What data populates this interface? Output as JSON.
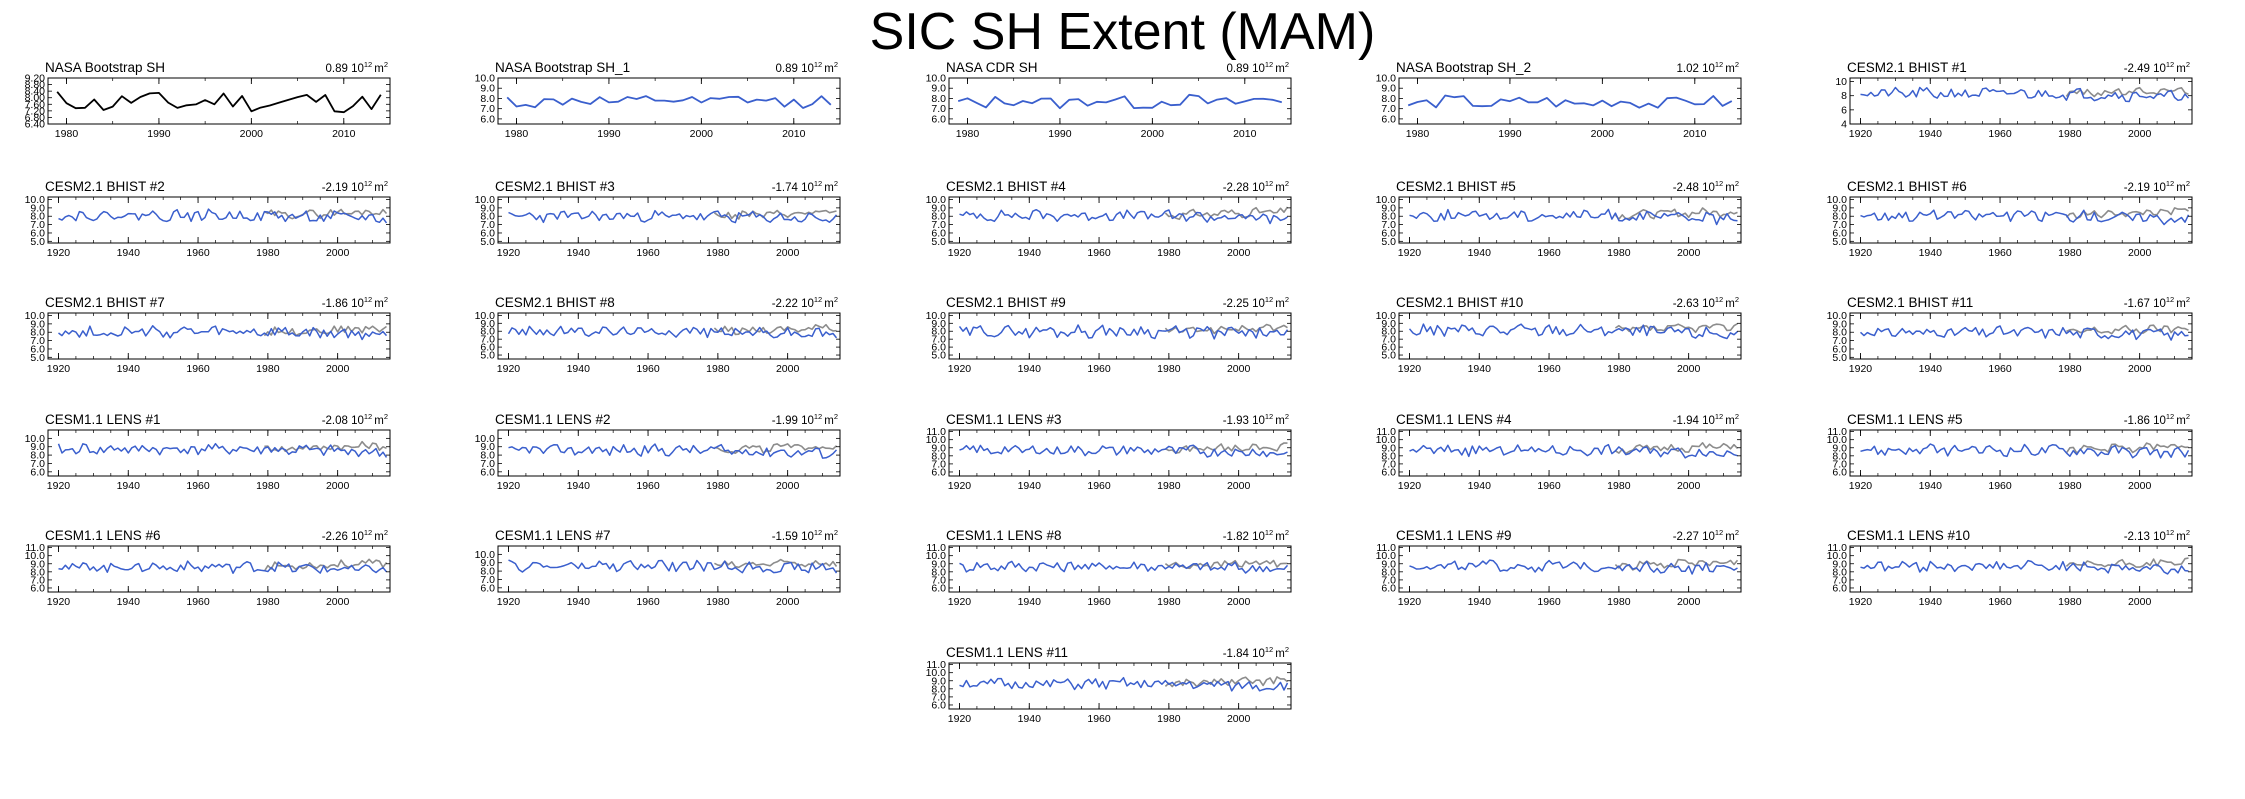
{
  "title": "SIC SH Extent (MAM)",
  "colors": {
    "obs_line": "#000000",
    "model_line": "#3a5fcd",
    "obs_overlay": "#8c8c8c"
  },
  "unit": {
    "base": "10",
    "exp": "12",
    "suffix": "m",
    "sup": "2"
  },
  "chart_data": [
    {
      "id": "nasa-bootstrap-sh",
      "type": "line",
      "title": "NASA Bootstrap SH",
      "trend": "0.89",
      "xlim": [
        1978,
        2015
      ],
      "ylim": [
        6.4,
        9.2
      ],
      "yticks": [
        "9.20",
        "8.80",
        "8.40",
        "8.00",
        "7.60",
        "7.20",
        "6.80",
        "6.40"
      ],
      "xticks": [
        "1980",
        "1990",
        "2000",
        "2010"
      ],
      "style": "obs",
      "series_start": 1979,
      "seed": 11,
      "mean": 7.75,
      "amp": 0.55
    },
    {
      "id": "nasa-bootstrap-sh-1",
      "type": "line",
      "title": "NASA Bootstrap SH_1",
      "trend": "0.89",
      "xlim": [
        1978,
        2015
      ],
      "ylim": [
        5.5,
        10.0
      ],
      "yticks": [
        "10.0",
        "9.0",
        "8.0",
        "7.0",
        "6.0"
      ],
      "xticks": [
        "1980",
        "1990",
        "2000",
        "2010"
      ],
      "style": "single",
      "series_start": 1979,
      "seed": 12,
      "mean": 7.7,
      "amp": 0.6
    },
    {
      "id": "nasa-cdr-sh",
      "type": "line",
      "title": "NASA CDR SH",
      "trend": "0.89",
      "xlim": [
        1978,
        2015
      ],
      "ylim": [
        5.5,
        10.0
      ],
      "yticks": [
        "10.0",
        "9.0",
        "8.0",
        "7.0",
        "6.0"
      ],
      "xticks": [
        "1980",
        "1990",
        "2000",
        "2010"
      ],
      "style": "single",
      "series_start": 1979,
      "seed": 13,
      "mean": 7.7,
      "amp": 0.6
    },
    {
      "id": "nasa-bootstrap-sh-2",
      "type": "line",
      "title": "NASA Bootstrap SH_2",
      "trend": "1.02",
      "xlim": [
        1978,
        2015
      ],
      "ylim": [
        5.5,
        10.0
      ],
      "yticks": [
        "10.0",
        "9.0",
        "8.0",
        "7.0",
        "6.0"
      ],
      "xticks": [
        "1980",
        "1990",
        "2000",
        "2010"
      ],
      "style": "single",
      "series_start": 1979,
      "seed": 14,
      "mean": 7.6,
      "amp": 0.6
    },
    {
      "id": "cesm2-bhist-1",
      "type": "line",
      "title": "CESM2.1 BHIST #1",
      "trend": "-2.49",
      "xlim": [
        1917,
        2015
      ],
      "ylim": [
        4,
        10.5
      ],
      "yticks": [
        "10",
        "8",
        "6",
        "4"
      ],
      "xticks": [
        "1920",
        "1940",
        "1960",
        "1980",
        "2000"
      ],
      "style": "model",
      "series_start": 1920,
      "seed": 21,
      "mean": 8.3,
      "amp": 0.7
    },
    {
      "id": "cesm2-bhist-2",
      "type": "line",
      "title": "CESM2.1 BHIST #2",
      "trend": "-2.19",
      "xlim": [
        1917,
        2015
      ],
      "ylim": [
        4.8,
        10.3
      ],
      "yticks": [
        "10.0",
        "9.0",
        "8.0",
        "7.0",
        "6.0",
        "5.0"
      ],
      "xticks": [
        "1920",
        "1940",
        "1960",
        "1980",
        "2000"
      ],
      "style": "model",
      "series_start": 1920,
      "seed": 22,
      "mean": 8.1,
      "amp": 0.6
    },
    {
      "id": "cesm2-bhist-3",
      "type": "line",
      "title": "CESM2.1 BHIST #3",
      "trend": "-1.74",
      "xlim": [
        1917,
        2015
      ],
      "ylim": [
        4.8,
        10.3
      ],
      "yticks": [
        "10.0",
        "9.0",
        "8.0",
        "7.0",
        "6.0",
        "5.0"
      ],
      "xticks": [
        "1920",
        "1940",
        "1960",
        "1980",
        "2000"
      ],
      "style": "model",
      "series_start": 1920,
      "seed": 23,
      "mean": 8.0,
      "amp": 0.6
    },
    {
      "id": "cesm2-bhist-4",
      "type": "line",
      "title": "CESM2.1 BHIST #4",
      "trend": "-2.28",
      "xlim": [
        1917,
        2015
      ],
      "ylim": [
        4.8,
        10.3
      ],
      "yticks": [
        "10.0",
        "9.0",
        "8.0",
        "7.0",
        "6.0",
        "5.0"
      ],
      "xticks": [
        "1920",
        "1940",
        "1960",
        "1980",
        "2000"
      ],
      "style": "model",
      "series_start": 1920,
      "seed": 24,
      "mean": 8.1,
      "amp": 0.6
    },
    {
      "id": "cesm2-bhist-5",
      "type": "line",
      "title": "CESM2.1 BHIST #5",
      "trend": "-2.48",
      "xlim": [
        1917,
        2015
      ],
      "ylim": [
        4.8,
        10.3
      ],
      "yticks": [
        "10.0",
        "9.0",
        "8.0",
        "7.0",
        "6.0",
        "5.0"
      ],
      "xticks": [
        "1920",
        "1940",
        "1960",
        "1980",
        "2000"
      ],
      "style": "model",
      "series_start": 1920,
      "seed": 25,
      "mean": 8.1,
      "amp": 0.6
    },
    {
      "id": "cesm2-bhist-6",
      "type": "line",
      "title": "CESM2.1 BHIST #6",
      "trend": "-2.19",
      "xlim": [
        1917,
        2015
      ],
      "ylim": [
        4.8,
        10.3
      ],
      "yticks": [
        "10.0",
        "9.0",
        "8.0",
        "7.0",
        "6.0",
        "5.0"
      ],
      "xticks": [
        "1920",
        "1940",
        "1960",
        "1980",
        "2000"
      ],
      "style": "model",
      "series_start": 1920,
      "seed": 26,
      "mean": 8.1,
      "amp": 0.6
    },
    {
      "id": "cesm2-bhist-7",
      "type": "line",
      "title": "CESM2.1 BHIST #7",
      "trend": "-1.86",
      "xlim": [
        1917,
        2015
      ],
      "ylim": [
        4.8,
        10.3
      ],
      "yticks": [
        "10.0",
        "9.0",
        "8.0",
        "7.0",
        "6.0",
        "5.0"
      ],
      "xticks": [
        "1920",
        "1940",
        "1960",
        "1980",
        "2000"
      ],
      "style": "model",
      "series_start": 1920,
      "seed": 27,
      "mean": 8.0,
      "amp": 0.6
    },
    {
      "id": "cesm2-bhist-8",
      "type": "line",
      "title": "CESM2.1 BHIST #8",
      "trend": "-2.22",
      "xlim": [
        1917,
        2015
      ],
      "ylim": [
        4.5,
        10.3
      ],
      "yticks": [
        "10.0",
        "9.0",
        "8.0",
        "7.0",
        "6.0",
        "5.0"
      ],
      "xticks": [
        "1920",
        "1940",
        "1960",
        "1980",
        "2000"
      ],
      "style": "model",
      "series_start": 1920,
      "seed": 28,
      "mean": 8.0,
      "amp": 0.6
    },
    {
      "id": "cesm2-bhist-9",
      "type": "line",
      "title": "CESM2.1 BHIST #9",
      "trend": "-2.25",
      "xlim": [
        1917,
        2015
      ],
      "ylim": [
        4.5,
        10.3
      ],
      "yticks": [
        "10.0",
        "9.0",
        "8.0",
        "7.0",
        "6.0",
        "5.0"
      ],
      "xticks": [
        "1920",
        "1940",
        "1960",
        "1980",
        "2000"
      ],
      "style": "model",
      "series_start": 1920,
      "seed": 29,
      "mean": 8.0,
      "amp": 0.7
    },
    {
      "id": "cesm2-bhist-10",
      "type": "line",
      "title": "CESM2.1 BHIST #10",
      "trend": "-2.63",
      "xlim": [
        1917,
        2015
      ],
      "ylim": [
        4.5,
        10.3
      ],
      "yticks": [
        "10.0",
        "9.0",
        "8.0",
        "7.0",
        "6.0",
        "5.0"
      ],
      "xticks": [
        "1920",
        "1940",
        "1960",
        "1980",
        "2000"
      ],
      "style": "model",
      "series_start": 1920,
      "seed": 30,
      "mean": 8.1,
      "amp": 0.7
    },
    {
      "id": "cesm2-bhist-11",
      "type": "line",
      "title": "CESM2.1 BHIST #11",
      "trend": "-1.67",
      "xlim": [
        1917,
        2015
      ],
      "ylim": [
        4.8,
        10.3
      ],
      "yticks": [
        "10.0",
        "9.0",
        "8.0",
        "7.0",
        "6.0",
        "5.0"
      ],
      "xticks": [
        "1920",
        "1940",
        "1960",
        "1980",
        "2000"
      ],
      "style": "model",
      "series_start": 1920,
      "seed": 31,
      "mean": 8.0,
      "amp": 0.6
    },
    {
      "id": "cesm1-lens-1",
      "type": "line",
      "title": "CESM1.1 LENS #1",
      "trend": "-2.08",
      "xlim": [
        1917,
        2015
      ],
      "ylim": [
        5.5,
        11.0
      ],
      "yticks": [
        "10.0",
        "9.0",
        "8.0",
        "7.0",
        "6.0"
      ],
      "xticks": [
        "1920",
        "1940",
        "1960",
        "1980",
        "2000"
      ],
      "style": "model",
      "series_start": 1920,
      "seed": 41,
      "mean": 8.7,
      "amp": 0.6
    },
    {
      "id": "cesm1-lens-2",
      "type": "line",
      "title": "CESM1.1 LENS #2",
      "trend": "-1.99",
      "xlim": [
        1917,
        2015
      ],
      "ylim": [
        5.5,
        11.0
      ],
      "yticks": [
        "10.0",
        "9.0",
        "8.0",
        "7.0",
        "6.0"
      ],
      "xticks": [
        "1920",
        "1940",
        "1960",
        "1980",
        "2000"
      ],
      "style": "model",
      "series_start": 1920,
      "seed": 42,
      "mean": 8.6,
      "amp": 0.6
    },
    {
      "id": "cesm1-lens-3",
      "type": "line",
      "title": "CESM1.1 LENS #3",
      "trend": "-1.93",
      "xlim": [
        1917,
        2015
      ],
      "ylim": [
        5.5,
        11.2
      ],
      "yticks": [
        "11.0",
        "10.0",
        "9.0",
        "8.0",
        "7.0",
        "6.0"
      ],
      "xticks": [
        "1920",
        "1940",
        "1960",
        "1980",
        "2000"
      ],
      "style": "model",
      "series_start": 1920,
      "seed": 43,
      "mean": 8.7,
      "amp": 0.6
    },
    {
      "id": "cesm1-lens-4",
      "type": "line",
      "title": "CESM1.1 LENS #4",
      "trend": "-1.94",
      "xlim": [
        1917,
        2015
      ],
      "ylim": [
        5.5,
        11.2
      ],
      "yticks": [
        "11.0",
        "10.0",
        "9.0",
        "8.0",
        "7.0",
        "6.0"
      ],
      "xticks": [
        "1920",
        "1940",
        "1960",
        "1980",
        "2000"
      ],
      "style": "model",
      "series_start": 1920,
      "seed": 44,
      "mean": 8.7,
      "amp": 0.6
    },
    {
      "id": "cesm1-lens-5",
      "type": "line",
      "title": "CESM1.1 LENS #5",
      "trend": "-1.86",
      "xlim": [
        1917,
        2015
      ],
      "ylim": [
        5.5,
        11.2
      ],
      "yticks": [
        "11.0",
        "10.0",
        "9.0",
        "8.0",
        "7.0",
        "6.0"
      ],
      "xticks": [
        "1920",
        "1940",
        "1960",
        "1980",
        "2000"
      ],
      "style": "model",
      "series_start": 1920,
      "seed": 45,
      "mean": 8.7,
      "amp": 0.6
    },
    {
      "id": "cesm1-lens-6",
      "type": "line",
      "title": "CESM1.1 LENS #6",
      "trend": "-2.26",
      "xlim": [
        1917,
        2015
      ],
      "ylim": [
        5.5,
        11.2
      ],
      "yticks": [
        "11.0",
        "10.0",
        "9.0",
        "8.0",
        "7.0",
        "6.0"
      ],
      "xticks": [
        "1920",
        "1940",
        "1960",
        "1980",
        "2000"
      ],
      "style": "model",
      "series_start": 1920,
      "seed": 46,
      "mean": 8.6,
      "amp": 0.6
    },
    {
      "id": "cesm1-lens-7",
      "type": "line",
      "title": "CESM1.1 LENS #7",
      "trend": "-1.59",
      "xlim": [
        1917,
        2015
      ],
      "ylim": [
        5.5,
        11.0
      ],
      "yticks": [
        "10.0",
        "9.0",
        "8.0",
        "7.0",
        "6.0"
      ],
      "xticks": [
        "1920",
        "1940",
        "1960",
        "1980",
        "2000"
      ],
      "style": "model",
      "series_start": 1920,
      "seed": 47,
      "mean": 8.6,
      "amp": 0.6
    },
    {
      "id": "cesm1-lens-8",
      "type": "line",
      "title": "CESM1.1 LENS #8",
      "trend": "-1.82",
      "xlim": [
        1917,
        2015
      ],
      "ylim": [
        5.5,
        11.2
      ],
      "yticks": [
        "11.0",
        "10.0",
        "9.0",
        "8.0",
        "7.0",
        "6.0"
      ],
      "xticks": [
        "1920",
        "1940",
        "1960",
        "1980",
        "2000"
      ],
      "style": "model",
      "series_start": 1920,
      "seed": 48,
      "mean": 8.7,
      "amp": 0.6
    },
    {
      "id": "cesm1-lens-9",
      "type": "line",
      "title": "CESM1.1 LENS #9",
      "trend": "-2.27",
      "xlim": [
        1917,
        2015
      ],
      "ylim": [
        5.5,
        11.2
      ],
      "yticks": [
        "11.0",
        "10.0",
        "9.0",
        "8.0",
        "7.0",
        "6.0"
      ],
      "xticks": [
        "1920",
        "1940",
        "1960",
        "1980",
        "2000"
      ],
      "style": "model",
      "series_start": 1920,
      "seed": 49,
      "mean": 8.7,
      "amp": 0.6
    },
    {
      "id": "cesm1-lens-10",
      "type": "line",
      "title": "CESM1.1 LENS #10",
      "trend": "-2.13",
      "xlim": [
        1917,
        2015
      ],
      "ylim": [
        5.5,
        11.2
      ],
      "yticks": [
        "11.0",
        "10.0",
        "9.0",
        "8.0",
        "7.0",
        "6.0"
      ],
      "xticks": [
        "1920",
        "1940",
        "1960",
        "1980",
        "2000"
      ],
      "style": "model",
      "series_start": 1920,
      "seed": 50,
      "mean": 8.7,
      "amp": 0.6
    },
    {
      "id": "cesm1-lens-11",
      "type": "line",
      "title": "CESM1.1 LENS #11",
      "trend": "-1.84",
      "xlim": [
        1917,
        2015
      ],
      "ylim": [
        5.5,
        11.2
      ],
      "yticks": [
        "11.0",
        "10.0",
        "9.0",
        "8.0",
        "7.0",
        "6.0"
      ],
      "xticks": [
        "1920",
        "1940",
        "1960",
        "1980",
        "2000"
      ],
      "style": "model",
      "series_start": 1920,
      "seed": 51,
      "mean": 8.6,
      "amp": 0.6
    }
  ]
}
